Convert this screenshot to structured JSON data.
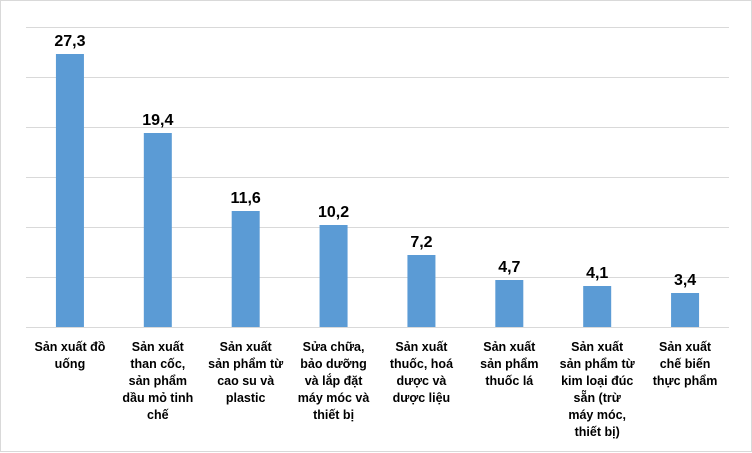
{
  "chart_data": {
    "type": "bar",
    "title": "",
    "xlabel": "",
    "ylabel": "",
    "ylim": [
      0,
      30
    ],
    "grid": true,
    "legend": "none",
    "bar_color": "#5b9bd5",
    "grid_color": "#d9d9d9",
    "categories": [
      [
        "Sản xuất đồ",
        "uống"
      ],
      [
        "Sản xuất",
        "than cốc,",
        "sản phẩm",
        "dầu mỏ tinh",
        "chế"
      ],
      [
        "Sản xuất",
        "sản phẩm từ",
        "cao su và",
        "plastic"
      ],
      [
        "Sửa chữa,",
        "bảo dưỡng",
        "và lắp đặt",
        "máy móc và",
        "thiết bị"
      ],
      [
        "Sản xuất",
        "thuốc, hoá",
        "dược và",
        "dược liệu"
      ],
      [
        "Sản xuất",
        "sản phẩm",
        "thuốc lá"
      ],
      [
        "Sản xuất",
        "sản phẩm từ",
        "kim loại đúc",
        "sẵn (trừ",
        "máy móc,",
        "thiết bị)"
      ],
      [
        "Sản xuất",
        "chế biến",
        "thực phẩm"
      ]
    ],
    "values": [
      27.3,
      19.4,
      11.6,
      10.2,
      7.2,
      4.7,
      4.1,
      3.4
    ],
    "value_labels": [
      "27,3",
      "19,4",
      "11,6",
      "10,2",
      "7,2",
      "4,7",
      "4,1",
      "3,4"
    ]
  }
}
